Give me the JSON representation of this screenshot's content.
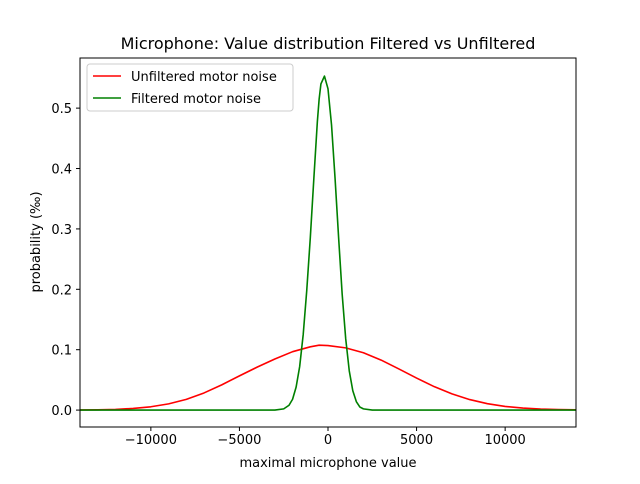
{
  "chart_data": {
    "type": "line",
    "title": "Microphone: Value distribution Filtered vs Unfiltered",
    "xlabel": "maximal microphone value",
    "ylabel": "probability (‰)",
    "xlim": [
      -14000,
      14000
    ],
    "ylim": [
      -0.028,
      0.583
    ],
    "x_ticks": [
      -10000,
      -5000,
      0,
      5000,
      10000
    ],
    "x_tick_labels": [
      "−10000",
      "−5000",
      "0",
      "5000",
      "10000"
    ],
    "y_ticks": [
      0.0,
      0.1,
      0.2,
      0.3,
      0.4,
      0.5
    ],
    "y_tick_labels": [
      "0.0",
      "0.1",
      "0.2",
      "0.3",
      "0.4",
      "0.5"
    ],
    "grid": false,
    "legend_position": "upper-left",
    "series": [
      {
        "name": "Unfiltered motor noise",
        "color": "#ff0000",
        "x": [
          -14000,
          -13000,
          -12000,
          -11000,
          -10000,
          -9000,
          -8000,
          -7000,
          -6000,
          -5000,
          -4000,
          -3000,
          -2000,
          -1000,
          -500,
          0,
          1000,
          2000,
          3000,
          4000,
          5000,
          6000,
          7000,
          8000,
          9000,
          10000,
          11000,
          12000,
          13000,
          14000
        ],
        "values": [
          0.0002,
          0.0005,
          0.0012,
          0.0027,
          0.0055,
          0.0103,
          0.0178,
          0.0284,
          0.0418,
          0.0567,
          0.0711,
          0.0846,
          0.0967,
          0.1048,
          0.1075,
          0.1068,
          0.103,
          0.095,
          0.0828,
          0.0681,
          0.053,
          0.0388,
          0.0268,
          0.0174,
          0.0106,
          0.0061,
          0.0033,
          0.0017,
          0.0008,
          0.0004
        ]
      },
      {
        "name": "Filtered motor noise",
        "color": "#008000",
        "x": [
          -14000,
          -3000,
          -2500,
          -2200,
          -2000,
          -1800,
          -1600,
          -1400,
          -1200,
          -1000,
          -800,
          -600,
          -500,
          -400,
          -200,
          0,
          200,
          400,
          600,
          800,
          1000,
          1200,
          1400,
          1600,
          1800,
          2000,
          2500,
          14000
        ],
        "values": [
          0.0,
          0.0,
          0.002,
          0.008,
          0.018,
          0.038,
          0.072,
          0.125,
          0.198,
          0.285,
          0.383,
          0.478,
          0.515,
          0.54,
          0.553,
          0.532,
          0.472,
          0.383,
          0.285,
          0.192,
          0.118,
          0.065,
          0.032,
          0.014,
          0.005,
          0.002,
          0.0,
          0.0
        ]
      }
    ]
  }
}
